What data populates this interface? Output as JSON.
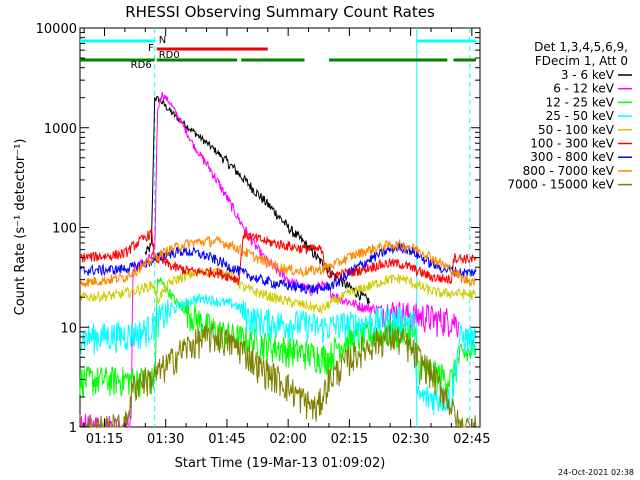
{
  "chart_data": {
    "type": "line",
    "title": "RHESSI Observing Summary Count Rates",
    "xlabel": "Start Time (19-Mar-13 01:09:02)",
    "ylabel": "Count Rate (s⁻¹ detector⁻¹)",
    "x_range_minutes": [
      69,
      167
    ],
    "x_ticks": [
      {
        "t": 75,
        "label": "01:15"
      },
      {
        "t": 90,
        "label": "01:30"
      },
      {
        "t": 105,
        "label": "01:45"
      },
      {
        "t": 120,
        "label": "02:00"
      },
      {
        "t": 135,
        "label": "02:15"
      },
      {
        "t": 150,
        "label": "02:30"
      },
      {
        "t": 165,
        "label": "02:45"
      }
    ],
    "y_scale": "log",
    "ylim": [
      1,
      10000
    ],
    "y_ticks": [
      {
        "v": 1,
        "label": "1"
      },
      {
        "v": 10,
        "label": "10"
      },
      {
        "v": 100,
        "label": "100"
      },
      {
        "v": 1000,
        "label": "1000"
      },
      {
        "v": 10000,
        "label": "10000"
      }
    ],
    "legend_header": [
      "Det 1,3,4,5,6,9,",
      "FDecim 1, Att 0"
    ],
    "series": [
      {
        "name": "3 - 6 keV",
        "color": "#000000",
        "points": [
          [
            85,
            55
          ],
          [
            86.5,
            65
          ],
          [
            87.3,
            2000
          ],
          [
            88.5,
            1900
          ],
          [
            92,
            1350
          ],
          [
            97,
            900
          ],
          [
            102,
            600
          ],
          [
            107,
            380
          ],
          [
            112,
            230
          ],
          [
            117,
            140
          ],
          [
            120,
            100
          ],
          [
            124,
            70
          ],
          [
            128,
            45
          ],
          [
            131,
            34
          ],
          [
            134,
            27
          ],
          [
            137,
            22
          ],
          [
            140,
            18
          ]
        ]
      },
      {
        "name": "6 - 12 keV",
        "color": "#ff00ff",
        "points": [
          [
            69,
            1
          ],
          [
            80,
            1
          ],
          [
            81.5,
            1
          ],
          [
            82,
            40
          ],
          [
            85,
            45
          ],
          [
            87.3,
            55
          ],
          [
            88,
            1500
          ],
          [
            89,
            2200
          ],
          [
            91,
            1800
          ],
          [
            94,
            1100
          ],
          [
            97,
            650
          ],
          [
            101,
            380
          ],
          [
            105,
            200
          ],
          [
            108,
            120
          ],
          [
            111,
            75
          ],
          [
            114,
            50
          ],
          [
            118,
            35
          ],
          [
            121,
            28
          ],
          [
            126,
            23
          ],
          [
            128,
            27
          ],
          [
            132,
            20
          ],
          [
            138,
            16
          ],
          [
            143,
            15
          ],
          [
            147,
            14
          ],
          [
            151,
            13
          ],
          [
            154,
            13
          ],
          [
            156,
            12
          ],
          [
            160,
            12
          ],
          [
            162,
            11
          ]
        ]
      },
      {
        "name": "12 - 25 keV",
        "color": "#00ff00",
        "points": [
          [
            69,
            3
          ],
          [
            85,
            3
          ],
          [
            87.3,
            3
          ],
          [
            88,
            30
          ],
          [
            89,
            28
          ],
          [
            91,
            22
          ],
          [
            93,
            17
          ],
          [
            96,
            14
          ],
          [
            99,
            11
          ],
          [
            102,
            9.5
          ],
          [
            105,
            8.5
          ],
          [
            110,
            7.5
          ],
          [
            120,
            6
          ],
          [
            130,
            5
          ],
          [
            132,
            6.5
          ],
          [
            135,
            7.5
          ],
          [
            140,
            8.5
          ],
          [
            144,
            9
          ],
          [
            148,
            9
          ],
          [
            151,
            8.5
          ],
          [
            152,
            4
          ],
          [
            160,
            3
          ],
          [
            162,
            5
          ],
          [
            166,
            6
          ]
        ]
      },
      {
        "name": "25 - 50 keV",
        "color": "#00ffff",
        "points": [
          [
            69,
            8
          ],
          [
            80,
            8.5
          ],
          [
            84,
            9
          ],
          [
            86,
            10
          ],
          [
            87.5,
            11
          ],
          [
            89,
            13
          ],
          [
            93,
            16
          ],
          [
            97,
            19
          ],
          [
            100,
            19.5
          ],
          [
            103,
            18
          ],
          [
            107,
            17
          ],
          [
            110,
            13
          ],
          [
            112,
            12
          ],
          [
            118,
            11
          ],
          [
            124,
            11
          ],
          [
            128,
            10
          ],
          [
            132,
            10.5
          ],
          [
            138,
            11
          ],
          [
            144,
            12
          ],
          [
            148,
            12
          ],
          [
            151,
            11
          ],
          [
            151.5,
            2
          ],
          [
            155,
            2
          ],
          [
            160,
            2
          ],
          [
            162,
            8
          ],
          [
            166,
            7.5
          ]
        ]
      },
      {
        "name": "50 - 100 keV",
        "color": "#cccc00",
        "points": [
          [
            69,
            20
          ],
          [
            78,
            21
          ],
          [
            82,
            23
          ],
          [
            85,
            25
          ],
          [
            87,
            27
          ],
          [
            88,
            19
          ],
          [
            91,
            28
          ],
          [
            94,
            32
          ],
          [
            97,
            35
          ],
          [
            100,
            36
          ],
          [
            103,
            36
          ],
          [
            106,
            35
          ],
          [
            109,
            25
          ],
          [
            113,
            22
          ],
          [
            118,
            19
          ],
          [
            123,
            17
          ],
          [
            126,
            16
          ],
          [
            128,
            15
          ],
          [
            131,
            18
          ],
          [
            135,
            22
          ],
          [
            140,
            26
          ],
          [
            144,
            30
          ],
          [
            148,
            31
          ],
          [
            151,
            27
          ],
          [
            154,
            24
          ],
          [
            157,
            22
          ],
          [
            161,
            22
          ],
          [
            166,
            21
          ]
        ]
      },
      {
        "name": "100 - 300 keV",
        "color": "#ff0000",
        "points": [
          [
            69,
            50
          ],
          [
            76,
            52
          ],
          [
            80,
            55
          ],
          [
            82,
            65
          ],
          [
            85,
            80
          ],
          [
            86.5,
            88
          ],
          [
            87.3,
            50
          ],
          [
            92,
            40
          ],
          [
            97,
            36
          ],
          [
            102,
            36
          ],
          [
            106,
            32
          ],
          [
            108,
            30
          ],
          [
            109,
            85
          ],
          [
            112,
            78
          ],
          [
            115,
            72
          ],
          [
            118,
            68
          ],
          [
            123,
            62
          ],
          [
            128,
            60
          ],
          [
            130,
            33
          ],
          [
            133,
            34
          ],
          [
            138,
            38
          ],
          [
            142,
            42
          ],
          [
            145,
            44
          ],
          [
            148,
            43
          ],
          [
            151,
            38
          ],
          [
            155,
            32
          ],
          [
            160,
            30
          ],
          [
            160.5,
            50
          ],
          [
            166,
            48
          ]
        ]
      },
      {
        "name": "300 - 800 keV",
        "color": "#0000ff",
        "points": [
          [
            69,
            37
          ],
          [
            78,
            38
          ],
          [
            82,
            40
          ],
          [
            86,
            45
          ],
          [
            88,
            50
          ],
          [
            91,
            55
          ],
          [
            94,
            58
          ],
          [
            97,
            56
          ],
          [
            100,
            52
          ],
          [
            103,
            46
          ],
          [
            106,
            40
          ],
          [
            109,
            35
          ],
          [
            113,
            30
          ],
          [
            118,
            27
          ],
          [
            123,
            25
          ],
          [
            128,
            24
          ],
          [
            132,
            28
          ],
          [
            136,
            38
          ],
          [
            140,
            48
          ],
          [
            144,
            58
          ],
          [
            147,
            64
          ],
          [
            149,
            62
          ],
          [
            151,
            56
          ],
          [
            154,
            46
          ],
          [
            157,
            40
          ],
          [
            160,
            37
          ],
          [
            163,
            35
          ],
          [
            166,
            36
          ]
        ]
      },
      {
        "name": "800 - 7000 keV",
        "color": "#ff8800",
        "points": [
          [
            69,
            28
          ],
          [
            76,
            30
          ],
          [
            80,
            32
          ],
          [
            83,
            38
          ],
          [
            86,
            45
          ],
          [
            88,
            52
          ],
          [
            91,
            60
          ],
          [
            94,
            67
          ],
          [
            97,
            71
          ],
          [
            100,
            73
          ],
          [
            103,
            72
          ],
          [
            106,
            67
          ],
          [
            109,
            58
          ],
          [
            113,
            48
          ],
          [
            118,
            40
          ],
          [
            123,
            36
          ],
          [
            128,
            38
          ],
          [
            132,
            44
          ],
          [
            136,
            53
          ],
          [
            140,
            60
          ],
          [
            144,
            66
          ],
          [
            147,
            67
          ],
          [
            150,
            64
          ],
          [
            153,
            57
          ],
          [
            157,
            45
          ],
          [
            160,
            38
          ],
          [
            163,
            30
          ],
          [
            166,
            29
          ]
        ]
      },
      {
        "name": "7000 - 15000 keV",
        "color": "#808000",
        "points": [
          [
            69,
            1
          ],
          [
            80,
            1
          ],
          [
            82,
            2.5
          ],
          [
            84,
            3
          ],
          [
            86,
            3
          ],
          [
            88,
            3.5
          ],
          [
            91,
            4.5
          ],
          [
            94,
            6
          ],
          [
            97,
            7
          ],
          [
            100,
            8
          ],
          [
            103,
            8
          ],
          [
            106,
            7
          ],
          [
            109,
            6
          ],
          [
            113,
            4
          ],
          [
            118,
            3
          ],
          [
            123,
            2
          ],
          [
            127,
            1.5
          ],
          [
            130,
            3
          ],
          [
            134,
            4.5
          ],
          [
            138,
            6
          ],
          [
            142,
            7.5
          ],
          [
            145,
            8
          ],
          [
            148,
            7.5
          ],
          [
            151,
            5.5
          ],
          [
            155,
            3.5
          ],
          [
            159,
            2
          ],
          [
            162,
            1
          ],
          [
            166,
            1
          ]
        ]
      }
    ],
    "status_bars": [
      {
        "label": "N",
        "color": "#00ffff",
        "level": "top",
        "segments": [
          [
            69,
            87.3
          ],
          [
            151.5,
            166
          ]
        ]
      },
      {
        "label": "F",
        "color": "#ee0000",
        "level": "middle",
        "segments": [
          [
            87.8,
            115
          ]
        ]
      },
      {
        "label": "RD0",
        "color": "#008000",
        "level": "low-right",
        "segments": [
          [
            87.8,
            107.5
          ]
        ]
      },
      {
        "label": "RD6",
        "color": "#008000",
        "level": "low",
        "segments": [
          [
            69,
            87.3
          ],
          [
            87.8,
            107.5
          ],
          [
            108.5,
            124
          ],
          [
            130,
            159
          ],
          [
            160.5,
            166
          ]
        ]
      }
    ],
    "vertical_lines": [
      {
        "t": 87.3,
        "style": "dashed",
        "color": "#00ffff"
      },
      {
        "t": 151.5,
        "style": "solid",
        "color": "#00ffff"
      },
      {
        "t": 164.5,
        "style": "dashed",
        "color": "#00ffff"
      }
    ],
    "footer_stamp": "24-Oct-2021 02:38"
  }
}
